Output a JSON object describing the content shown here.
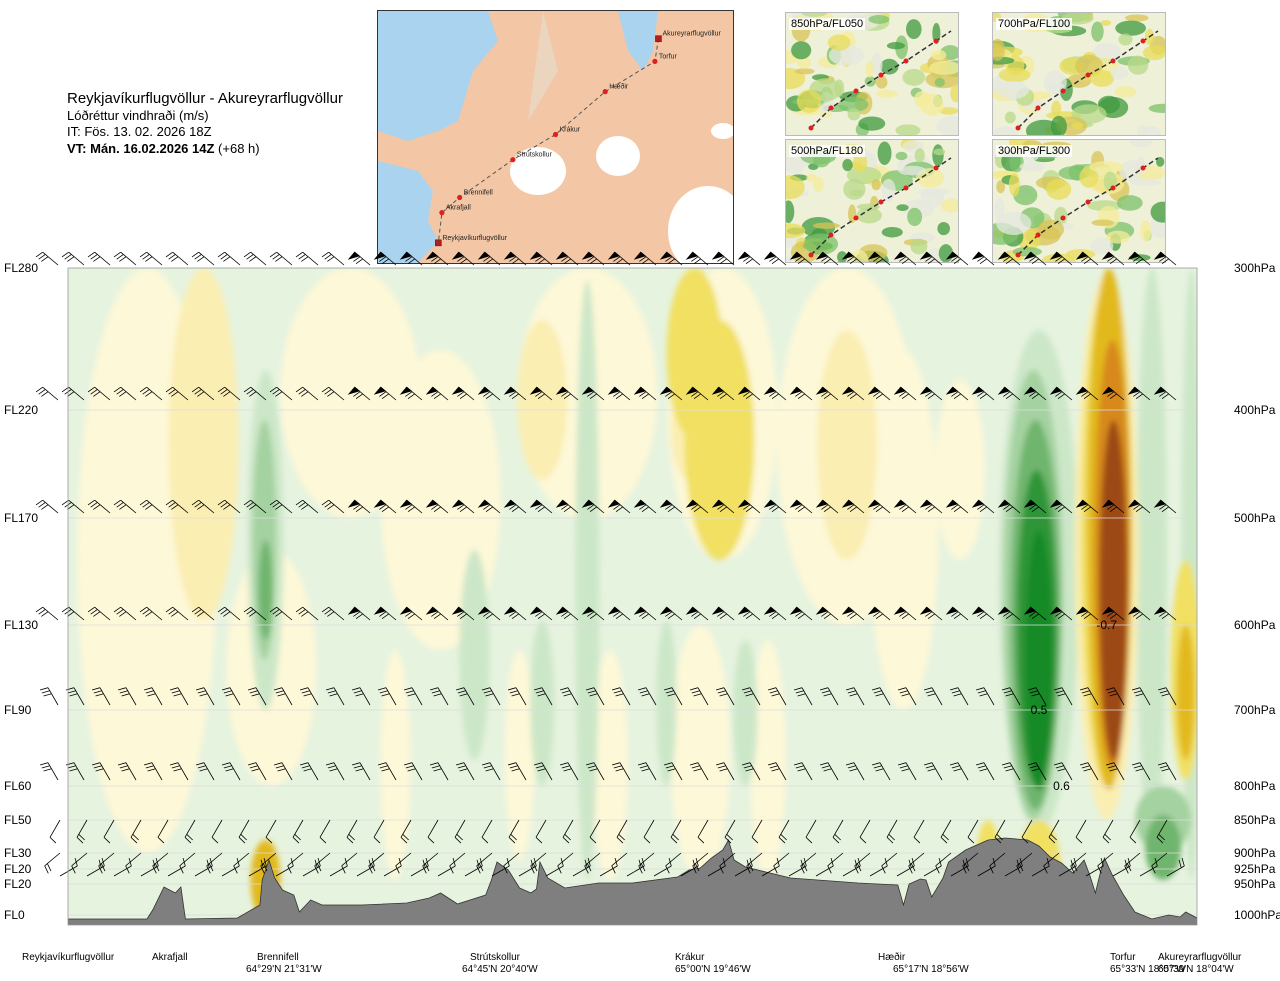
{
  "header": {
    "route": "Reykjavíkurflugvöllur - Akureyrarflugvöllur",
    "quantity": "Lóðréttur vindhraði (m/s)",
    "issue": "IT: Fös. 13. 02. 2026 18Z",
    "valid_lead": "VT: Mán. 16.02.2026 14Z",
    "valid_offset": "(+68 h)"
  },
  "map": {
    "points": [
      {
        "name": "Akureyrarflugvöllur",
        "x": 0.79,
        "y": 0.11,
        "type": "airport"
      },
      {
        "name": "Torfur",
        "x": 0.78,
        "y": 0.2,
        "type": "point"
      },
      {
        "name": "Hæðir",
        "x": 0.64,
        "y": 0.32,
        "type": "point"
      },
      {
        "name": "Krákur",
        "x": 0.5,
        "y": 0.49,
        "type": "point"
      },
      {
        "name": "Strútskollur",
        "x": 0.38,
        "y": 0.59,
        "type": "point"
      },
      {
        "name": "Brennifell",
        "x": 0.23,
        "y": 0.74,
        "type": "point"
      },
      {
        "name": "Akrafjall",
        "x": 0.18,
        "y": 0.8,
        "type": "point"
      },
      {
        "name": "Reykjavíkurflugvöllur",
        "x": 0.17,
        "y": 0.92,
        "type": "airport"
      }
    ]
  },
  "thumbnails": [
    {
      "label": "850hPa/FL050"
    },
    {
      "label": "700hPa/FL100"
    },
    {
      "label": "500hPa/FL180"
    },
    {
      "label": "300hPa/FL300"
    }
  ],
  "chart_data": {
    "type": "heatmap",
    "title": "Lóðréttur vindhraði (m/s)",
    "x_axis": "distance along route (fraction)",
    "y_axis": "pressure (hPa)",
    "levels_left": [
      {
        "fl": "FL280",
        "hpa": 300
      },
      {
        "fl": "FL220",
        "hpa": 400
      },
      {
        "fl": "FL170",
        "hpa": 500
      },
      {
        "fl": "FL130",
        "hpa": 600
      },
      {
        "fl": "FL90",
        "hpa": 700
      },
      {
        "fl": "FL60",
        "hpa": 800
      },
      {
        "fl": "FL50",
        "hpa": 850
      },
      {
        "fl": "FL30",
        "hpa": 900
      },
      {
        "fl": "FL20",
        "hpa": 925
      },
      {
        "fl": "FL20",
        "hpa": 950
      },
      {
        "fl": "FL0",
        "hpa": 1000
      }
    ],
    "levels_right": [
      "300hPa",
      "400hPa",
      "500hPa",
      "600hPa",
      "700hPa",
      "800hPa",
      "850hPa",
      "900hPa",
      "925hPa",
      "950hPa",
      "1000hPa"
    ],
    "locations": [
      {
        "name": "Reykjavíkurflugvöllur",
        "coord": "",
        "pos": 0.0
      },
      {
        "name": "Akrafjall",
        "coord": "",
        "pos": 0.09
      },
      {
        "name": "Brennifell",
        "coord": "64°29'N 21°31'W",
        "pos": 0.19
      },
      {
        "name": "Strútskollur",
        "coord": "64°45'N 20°40'W",
        "pos": 0.38
      },
      {
        "name": "Krákur",
        "coord": "65°00'N 19°46'W",
        "pos": 0.57
      },
      {
        "name": "Hæðir",
        "coord": "65°17'N 18°56'W",
        "pos": 0.75
      },
      {
        "name": "Torfur",
        "coord": "65°33'N 18°07'W",
        "pos": 0.94
      },
      {
        "name": "Akureyrarflugvöllur",
        "coord": "65°39'N 18°04'W",
        "pos": 1.0
      }
    ],
    "contour_labels": [
      {
        "text": "-0.7",
        "x": 0.92,
        "hpa": 600
      },
      {
        "text": "0.5",
        "x": 0.86,
        "hpa": 700
      },
      {
        "text": "0.6",
        "x": 0.88,
        "hpa": 800
      }
    ],
    "color_scale": {
      "up_colors": [
        "#e6f3df",
        "#cce7c8",
        "#a4d2a0",
        "#6fb56d",
        "#2f9637",
        "#138a26"
      ],
      "down_colors": [
        "#fdf8d8",
        "#fbeeb2",
        "#f1e062",
        "#e2b91d",
        "#d7891a",
        "#9c4818"
      ]
    },
    "terrain_color": "#7f7f7f"
  },
  "colors": {
    "terrain": "#7f7f7f",
    "sea": "#a9d3ee",
    "land": "#f3c7a6"
  }
}
